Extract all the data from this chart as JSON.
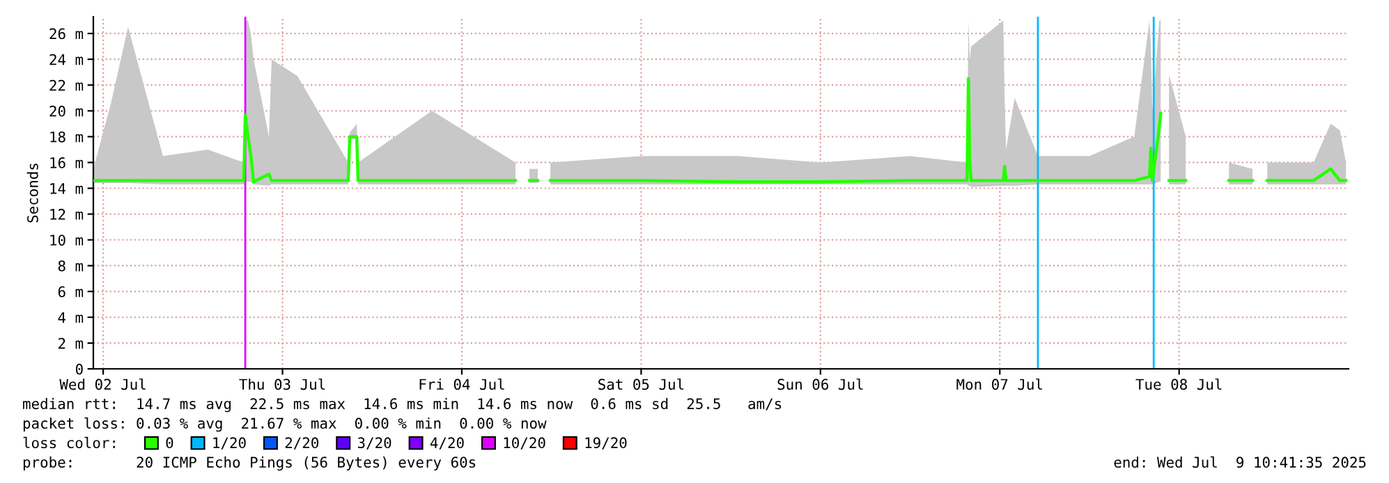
{
  "chart_data": {
    "type": "line",
    "ylabel": "Seconds",
    "legend_title": "loss color:",
    "legend": "bottom",
    "grid": true,
    "marker": "none",
    "line_style": "solid",
    "xlim": [
      "2025-07-02T10:41",
      "2025-07-09T10:41"
    ],
    "xticks": [
      {
        "value": "2025-07-02T12:00",
        "label": "Wed 02 Jul"
      },
      {
        "value": "2025-07-03T12:00",
        "label": "Thu 03 Jul"
      },
      {
        "value": "2025-07-04T12:00",
        "label": "Fri 04 Jul"
      },
      {
        "value": "2025-07-05T12:00",
        "label": "Sat 05 Jul"
      },
      {
        "value": "2025-07-06T12:00",
        "label": "Sun 06 Jul"
      },
      {
        "value": "2025-07-07T12:00",
        "label": "Mon 07 Jul"
      },
      {
        "value": "2025-07-08T12:00",
        "label": "Tue 08 Jul"
      }
    ],
    "ylim": [
      0,
      27.3
    ],
    "yticks": [
      0,
      {
        "value": 2,
        "label": "2 m"
      },
      {
        "value": 4,
        "label": "4 m"
      },
      {
        "value": 6,
        "label": "6 m"
      },
      {
        "value": 8,
        "label": "8 m"
      },
      {
        "value": 10,
        "label": "10 m"
      },
      {
        "value": 12,
        "label": "12 m"
      },
      {
        "value": 14,
        "label": "14 m"
      },
      {
        "value": 16,
        "label": "16 m"
      },
      {
        "value": 18,
        "label": "18 m"
      },
      {
        "value": 20,
        "label": "20 m"
      },
      {
        "value": 22,
        "label": "22 m"
      },
      {
        "value": 24,
        "label": "24 m"
      },
      {
        "value": 26,
        "label": "26 m"
      }
    ],
    "series": [
      {
        "name": "0",
        "color": "#26ff00",
        "x": [
          "2025-07-02T10:41",
          "2025-07-02T13:00",
          "2025-07-02T15:20",
          "2025-07-02T20:00",
          "2025-07-03T02:00",
          "2025-07-03T06:49",
          "2025-07-03T07:01",
          "2025-07-03T07:23",
          "2025-07-03T07:45",
          "2025-07-03T08:08",
          "2025-07-03T10:11",
          "2025-07-03T10:33",
          "2025-07-03T14:00",
          "2025-07-03T20:48",
          "2025-07-03T21:00",
          "2025-07-03T21:56",
          "2025-07-03T22:07",
          "2025-07-04T08:00",
          "2025-07-04T19:11",
          "2025-07-04T20:00",
          "2025-07-04T21:03",
          "2025-07-04T22:10",
          "2025-07-04T23:00",
          "2025-07-04T23:51",
          "2025-07-05T12:00",
          "2025-07-06T01:00",
          "2025-07-06T12:00",
          "2025-07-07T00:00",
          "2025-07-07T07:37",
          "2025-07-07T07:48",
          "2025-07-07T07:59",
          "2025-07-07T08:10",
          "2025-07-07T12:28",
          "2025-07-07T12:39",
          "2025-07-07T12:50",
          "2025-07-07T14:00",
          "2025-07-07T17:06",
          "2025-07-08T00:00",
          "2025-07-08T06:00",
          "2025-07-08T08:02",
          "2025-07-08T08:13",
          "2025-07-08T08:25",
          "2025-07-08T09:21",
          "2025-07-08T09:32",
          "2025-07-08T10:00",
          "2025-07-08T10:39",
          "2025-07-08T12:53",
          "2025-07-08T15:00",
          "2025-07-08T18:40",
          "2025-07-08T21:50",
          "2025-07-08T22:00",
          "2025-07-08T22:24",
          "2025-07-08T23:00",
          "2025-07-08T23:48",
          "2025-07-09T06:00",
          "2025-07-09T08:17",
          "2025-07-09T09:30",
          "2025-07-09T10:20"
        ],
        "values": [
          14.6,
          14.6,
          14.6,
          14.6,
          14.6,
          14.6,
          19.7,
          18.0,
          16.6,
          14.5,
          15.1,
          14.6,
          14.6,
          14.6,
          18.0,
          18.0,
          14.6,
          14.6,
          14.6,
          null,
          14.6,
          14.6,
          null,
          14.6,
          14.6,
          14.5,
          14.5,
          14.6,
          14.6,
          22.5,
          16.0,
          14.6,
          14.6,
          15.7,
          14.6,
          14.6,
          14.6,
          14.6,
          14.6,
          14.9,
          17.1,
          14.6,
          18.7,
          19.8,
          null,
          14.6,
          14.6,
          null,
          14.6,
          14.6,
          null,
          14.6,
          null,
          14.6,
          14.6,
          15.5,
          14.6,
          14.6
        ],
        "lower": [
          14.4,
          14.4,
          14.4,
          14.3,
          14.3,
          14.3,
          14.5,
          14.5,
          14.5,
          14.3,
          14.2,
          14.3,
          14.3,
          14.3,
          17.8,
          17.8,
          14.3,
          14.3,
          14.3,
          null,
          14.4,
          14.4,
          null,
          14.3,
          14.3,
          14.3,
          14.3,
          14.3,
          14.3,
          14.2,
          14.2,
          14.1,
          14.2,
          14.2,
          14.2,
          14.2,
          14.3,
          14.3,
          14.3,
          14.3,
          14.3,
          14.3,
          14.5,
          14.5,
          null,
          14.3,
          14.3,
          null,
          14.3,
          14.3,
          null,
          14.3,
          null,
          14.3,
          14.3,
          14.3,
          14.3,
          14.3
        ],
        "upper": [
          15.5,
          20.5,
          26.5,
          16.5,
          17,
          16,
          27,
          27,
          26,
          24,
          18,
          24,
          22.7,
          16,
          18.3,
          19,
          16,
          20,
          16,
          null,
          15.5,
          15.5,
          null,
          16,
          16.5,
          16.5,
          16,
          16.5,
          16,
          27,
          24,
          25,
          27,
          21,
          17,
          21,
          16.5,
          16.5,
          18,
          27,
          25,
          20,
          27,
          27,
          null,
          22.8,
          18,
          null,
          16,
          15.5,
          null,
          15,
          null,
          16,
          16,
          19,
          18.5,
          16
        ]
      },
      {
        "name": "1/20",
        "color": "#00b8ff"
      },
      {
        "name": "2/20",
        "color": "#0059ff"
      },
      {
        "name": "3/20",
        "color": "#5e00ff"
      },
      {
        "name": "4/20",
        "color": "#7e00ff"
      },
      {
        "name": "10/20",
        "color": "#dd00ff"
      },
      {
        "name": "19/20",
        "color": "#ff0000"
      }
    ],
    "ref_lines": [
      {
        "axis": "x",
        "value": "2025-07-03T07:01",
        "color": "#dd00ff"
      },
      {
        "axis": "x",
        "value": "2025-07-07T17:06",
        "color": "#00b8ff"
      },
      {
        "axis": "x",
        "value": "2025-07-08T08:36",
        "color": "#00b8ff"
      }
    ],
    "annotations": [
      "median rtt:  14.7 ms avg  22.5 ms max  14.6 ms min  14.6 ms now  0.6 ms sd  25.5   am/s",
      "packet loss: 0.03 % avg  21.67 % max  0.00 % min  0.00 % now",
      "probe:       20 ICMP Echo Pings (56 Bytes) every 60s",
      "end: Wed Jul  9 10:41:35 2025"
    ]
  }
}
